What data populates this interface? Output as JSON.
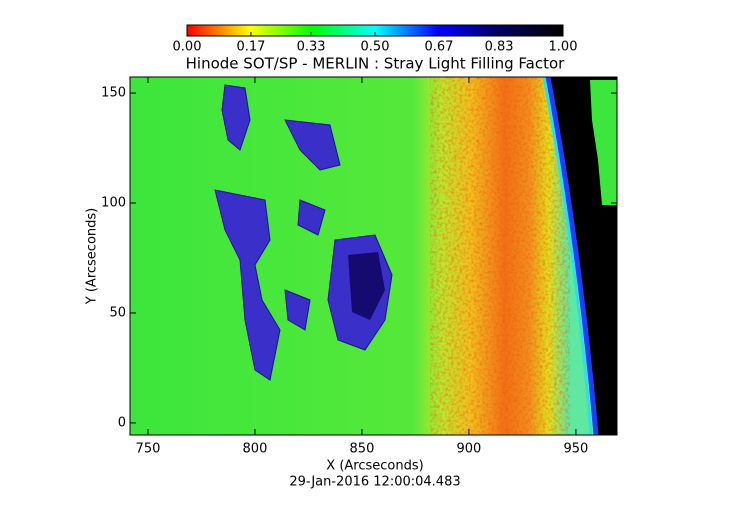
{
  "chart_data": {
    "type": "image",
    "title": "Hinode SOT/SP - MERLIN : Stray Light Filling Factor",
    "x_label": "X (Arcseconds)",
    "y_label": "Y (Arcseconds)",
    "timestamp": "29-Jan-2016 12:00:04.483",
    "xlim": [
      741.6,
      969.2
    ],
    "xticks": [
      750,
      800,
      850,
      900,
      950
    ],
    "ylim": [
      -5.5,
      157.3
    ],
    "yticks": [
      0,
      50,
      100,
      150
    ],
    "colorbar": {
      "lim": [
        0,
        1
      ],
      "ticks": [
        {
          "value": 0,
          "label": "0.00"
        },
        0.17,
        0.33,
        {
          "value": 0.5,
          "label": "0.50"
        },
        0.67,
        0.83,
        {
          "value": 1,
          "label": "1.00"
        }
      ],
      "colormap": [
        "#ff0000",
        "#ffff00",
        "#00ff00",
        "#00ffff",
        "#0000ff",
        "#000060",
        "#000000"
      ]
    }
  }
}
